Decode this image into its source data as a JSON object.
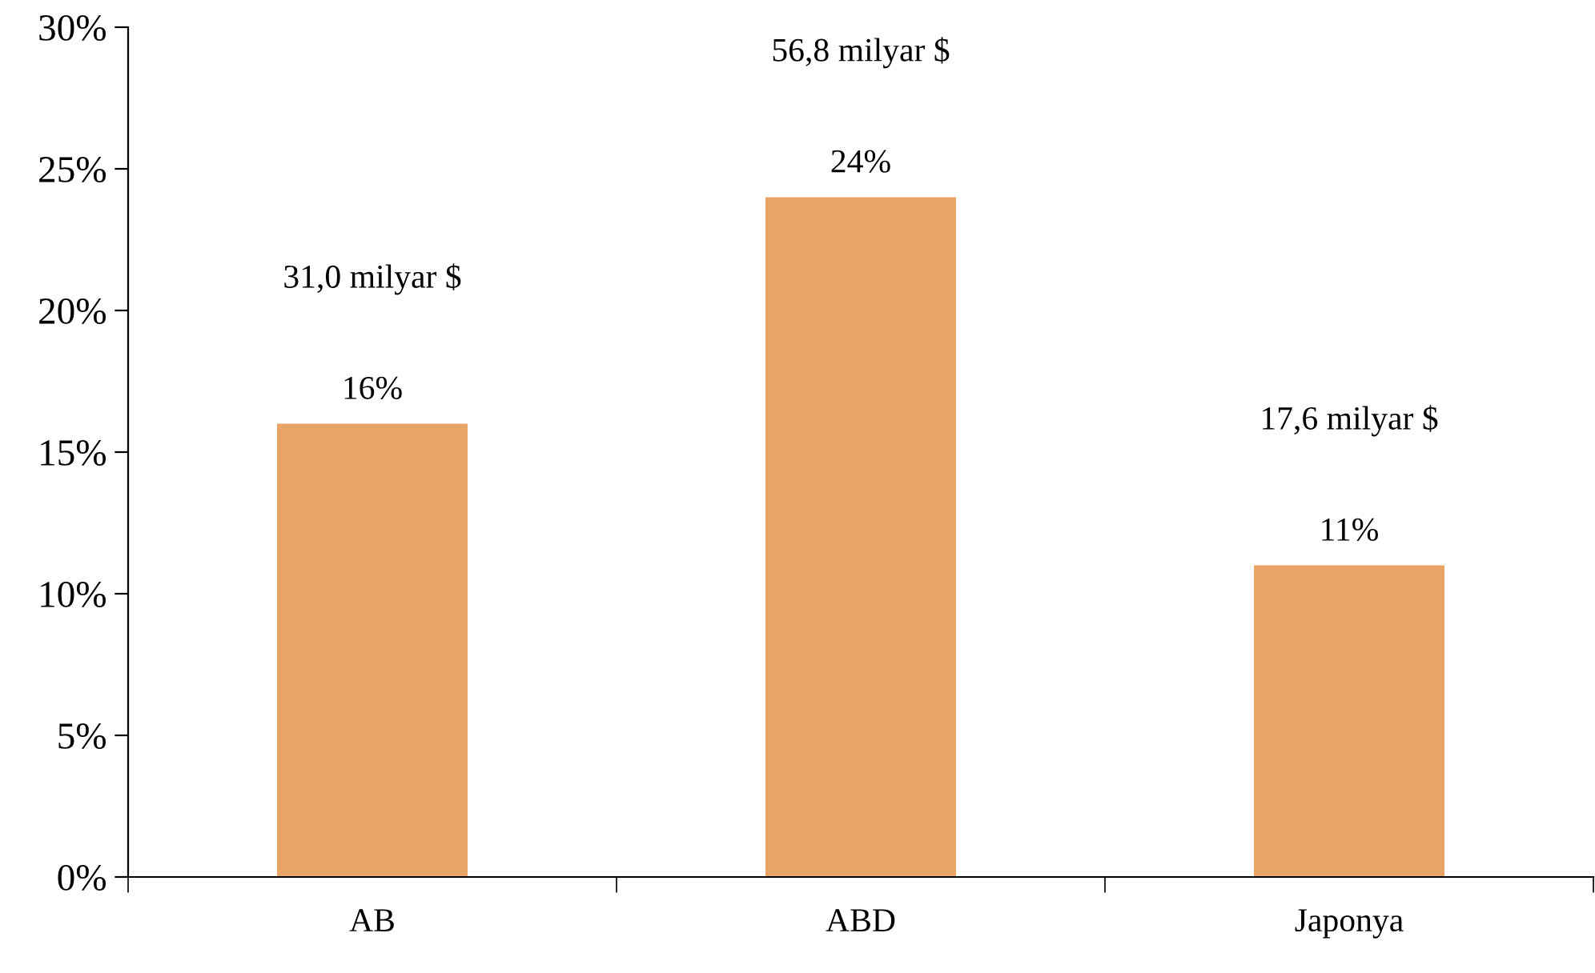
{
  "chart_data": {
    "type": "bar",
    "categories": [
      "AB",
      "ABD",
      "Japonya"
    ],
    "values": [
      16,
      24,
      11
    ],
    "color": "#e8a365",
    "value_labels": [
      "16%",
      "24%",
      "11%"
    ],
    "annotations": [
      "31,0 milyar $",
      "56,8 milyar $",
      "17,6 milyar $"
    ],
    "ylim": [
      0,
      30
    ],
    "yticks": [
      {
        "value": 0,
        "label": "0%"
      },
      {
        "value": 5,
        "label": "5%"
      },
      {
        "value": 10,
        "label": "10%"
      },
      {
        "value": 15,
        "label": "15%"
      },
      {
        "value": 20,
        "label": "20%"
      },
      {
        "value": 25,
        "label": "25%"
      },
      {
        "value": 30,
        "label": "30%"
      }
    ],
    "grid": false,
    "legend": false
  }
}
